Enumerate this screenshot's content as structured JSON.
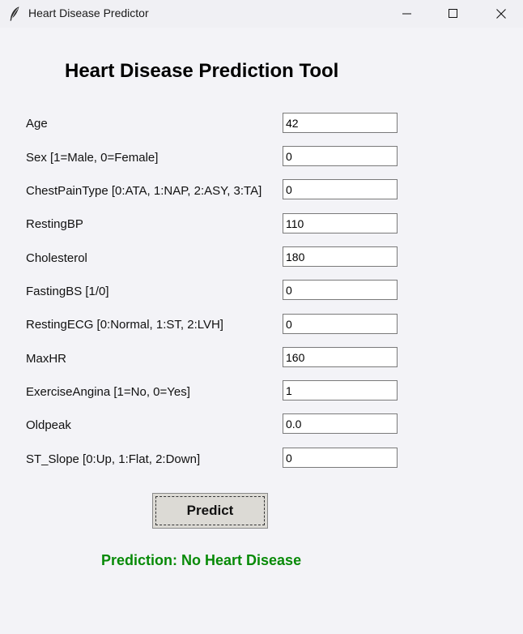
{
  "window": {
    "title": "Heart Disease Predictor",
    "icon": "feather-icon"
  },
  "heading": "Heart Disease Prediction Tool",
  "fields": [
    {
      "label": "Age",
      "value": "42"
    },
    {
      "label": "Sex [1=Male, 0=Female]",
      "value": "0"
    },
    {
      "label": "ChestPainType [0:ATA, 1:NAP, 2:ASY, 3:TA]",
      "value": "0"
    },
    {
      "label": "RestingBP",
      "value": "110"
    },
    {
      "label": "Cholesterol",
      "value": "180"
    },
    {
      "label": "FastingBS [1/0]",
      "value": "0"
    },
    {
      "label": "RestingECG [0:Normal, 1:ST, 2:LVH]",
      "value": "0"
    },
    {
      "label": "MaxHR",
      "value": "160"
    },
    {
      "label": "ExerciseAngina [1=No, 0=Yes]",
      "value": "1"
    },
    {
      "label": "Oldpeak",
      "value": "0.0"
    },
    {
      "label": "ST_Slope [0:Up, 1:Flat, 2:Down]",
      "value": "0"
    }
  ],
  "predict_button": "Predict",
  "result": {
    "text": "Prediction: No Heart Disease",
    "color": "#078a07"
  }
}
